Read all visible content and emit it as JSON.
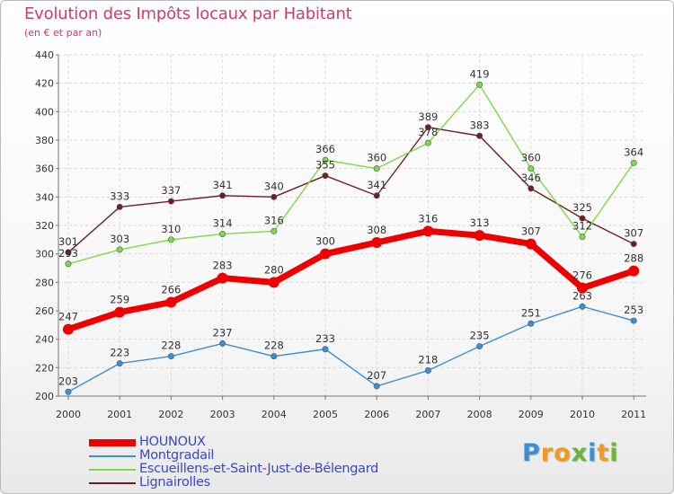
{
  "header": {
    "title": "Evolution des Impôts locaux par Habitant",
    "subtitle": "(en € et par an)"
  },
  "brand": {
    "letters": [
      "P",
      "r",
      "o",
      "x",
      "i",
      "t",
      "i"
    ],
    "colors": [
      "#3a8fd1",
      "#f29a1f",
      "#f29a1f",
      "#6ab536",
      "#3a8fd1",
      "#f29a1f",
      "#6ab536"
    ]
  },
  "chart_data": {
    "type": "line",
    "x": [
      "2000",
      "2001",
      "2002",
      "2003",
      "2004",
      "2005",
      "2006",
      "2007",
      "2008",
      "2009",
      "2010",
      "2011"
    ],
    "ylim": [
      200,
      440
    ],
    "yticks": [
      200,
      220,
      240,
      260,
      280,
      300,
      320,
      340,
      360,
      380,
      400,
      420,
      440
    ],
    "grid": true,
    "legend_position": "bottom-left",
    "series": [
      {
        "name": "HOUNOUX",
        "color": "#ee0000",
        "values": [
          247,
          259,
          266,
          283,
          280,
          300,
          308,
          316,
          313,
          307,
          276,
          288
        ]
      },
      {
        "name": "Montgradail",
        "color": "#3d8fd0",
        "values": [
          203,
          223,
          228,
          237,
          228,
          233,
          207,
          218,
          235,
          251,
          263,
          253
        ]
      },
      {
        "name": "Escueillens-et-Saint-Just-de-Bélengard",
        "color": "#7fd84b",
        "values": [
          293,
          303,
          310,
          314,
          316,
          366,
          360,
          378,
          419,
          360,
          312,
          364
        ]
      },
      {
        "name": "Lignairolles",
        "color": "#6e1f24",
        "values": [
          301,
          333,
          337,
          341,
          340,
          355,
          341,
          389,
          383,
          346,
          325,
          307
        ]
      }
    ]
  }
}
